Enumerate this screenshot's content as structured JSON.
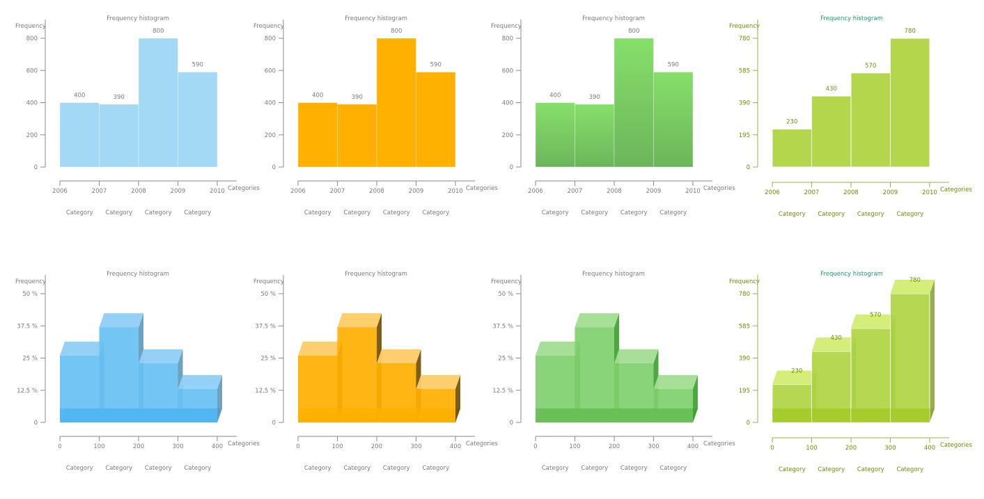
{
  "chart_data": [
    {
      "type": "bar",
      "style": "flat",
      "title": "Frequency histogram",
      "ylabel": "Frequency",
      "xlabel": "Categories",
      "x_ticks": [
        "2006",
        "2007",
        "2008",
        "2009",
        "2010"
      ],
      "category_labels": [
        "Category",
        "Category",
        "Category",
        "Category"
      ],
      "values": [
        400,
        390,
        800,
        590
      ],
      "data_labels": [
        "400",
        "390",
        "800",
        "590"
      ],
      "ylim": [
        0,
        800
      ],
      "y_ticks": [
        "0",
        "200",
        "400",
        "600",
        "800"
      ],
      "grid": false,
      "colors": {
        "bar": "#a3d9f5",
        "text": "#7a7a7a",
        "title": "#7a7a7a",
        "axis": "#8a8a8a"
      }
    },
    {
      "type": "bar",
      "style": "flat",
      "title": "Frequency histogram",
      "ylabel": "Frequency",
      "xlabel": "Categories",
      "x_ticks": [
        "2006",
        "2007",
        "2008",
        "2009",
        "2010"
      ],
      "category_labels": [
        "Category",
        "Category",
        "Category",
        "Category"
      ],
      "values": [
        400,
        390,
        800,
        590
      ],
      "data_labels": [
        "400",
        "390",
        "800",
        "590"
      ],
      "ylim": [
        0,
        800
      ],
      "y_ticks": [
        "0",
        "200",
        "400",
        "600",
        "800"
      ],
      "grid": false,
      "colors": {
        "bar": "#ffb000",
        "text": "#7a7a7a",
        "title": "#7a7a7a",
        "axis": "#8a8a8a"
      }
    },
    {
      "type": "bar",
      "style": "gradient",
      "title": "Frequency histogram",
      "ylabel": "Frequency",
      "xlabel": "Categories",
      "x_ticks": [
        "2006",
        "2007",
        "2008",
        "2009",
        "2010"
      ],
      "category_labels": [
        "Category",
        "Category",
        "Category",
        "Category"
      ],
      "values": [
        400,
        390,
        800,
        590
      ],
      "data_labels": [
        "400",
        "390",
        "800",
        "590"
      ],
      "ylim": [
        0,
        800
      ],
      "y_ticks": [
        "0",
        "200",
        "400",
        "600",
        "800"
      ],
      "grid": false,
      "colors": {
        "bar": "#86df6a",
        "bar_bottom": "#6cb55b",
        "text": "#7a7a7a",
        "title": "#7a7a7a",
        "axis": "#8a8a8a"
      }
    },
    {
      "type": "bar",
      "style": "flat",
      "title": "Frequency histogram",
      "ylabel": "Frequency",
      "xlabel": "Categories",
      "x_ticks": [
        "2006",
        "2007",
        "2008",
        "2009",
        "2010"
      ],
      "category_labels": [
        "Category",
        "Category",
        "Category",
        "Category"
      ],
      "values": [
        230,
        430,
        570,
        780
      ],
      "data_labels": [
        "230",
        "430",
        "570",
        "780"
      ],
      "ylim": [
        0,
        780
      ],
      "y_ticks": [
        "0",
        "195",
        "390",
        "585",
        "780"
      ],
      "grid": false,
      "colors": {
        "bar": "#b3d64d",
        "text": "#6b8e00",
        "title": "#1a9a70",
        "axis": "#9ab04a",
        "separator": "#ffffff"
      }
    },
    {
      "type": "bar",
      "style": "3d",
      "title": "Frequency histogram",
      "ylabel": "Frequency",
      "xlabel": "Categories",
      "x_ticks": [
        "0",
        "100",
        "200",
        "300",
        "400"
      ],
      "category_labels": [
        "Category",
        "Category",
        "Category",
        "Category"
      ],
      "values": [
        26,
        37,
        23,
        13
      ],
      "ylim": [
        0,
        50
      ],
      "y_unit": "%",
      "y_ticks": [
        "0",
        "12.5 %",
        "25 %",
        "37.5 %",
        "50 %"
      ],
      "grid": false,
      "colors": {
        "front": "#67c1f3",
        "top": "#8fcff6",
        "side": "#5f98b8",
        "bottom": "#44b0ef",
        "text": "#7a7a7a",
        "title": "#7a7a7a",
        "axis": "#8a8a8a"
      }
    },
    {
      "type": "bar",
      "style": "3d",
      "title": "Frequency histogram",
      "ylabel": "Frequency",
      "xlabel": "Categories",
      "x_ticks": [
        "0",
        "100",
        "200",
        "300",
        "400"
      ],
      "category_labels": [
        "Category",
        "Category",
        "Category",
        "Category"
      ],
      "values": [
        26,
        37,
        23,
        13
      ],
      "ylim": [
        0,
        50
      ],
      "y_unit": "%",
      "y_ticks": [
        "0",
        "12.5 %",
        "25 %",
        "37.5 %",
        "50 %"
      ],
      "grid": false,
      "colors": {
        "front": "#ffb000",
        "top": "#ffcb66",
        "side": "#6e4c00",
        "bottom": "#ffb000",
        "text": "#7a7a7a",
        "title": "#7a7a7a",
        "axis": "#8a8a8a"
      }
    },
    {
      "type": "bar",
      "style": "3d",
      "title": "Frequency histogram",
      "ylabel": "Frequency",
      "xlabel": "Categories",
      "x_ticks": [
        "0",
        "100",
        "200",
        "300",
        "400"
      ],
      "category_labels": [
        "Category",
        "Category",
        "Category",
        "Category"
      ],
      "values": [
        26,
        37,
        23,
        13
      ],
      "ylim": [
        0,
        50
      ],
      "y_unit": "%",
      "y_ticks": [
        "0",
        "12.5 %",
        "25 %",
        "37.5 %",
        "50 %"
      ],
      "grid": false,
      "colors": {
        "front": "#7fcf6c",
        "top": "#a2dd92",
        "side": "#3a9e2e",
        "bottom": "#5cb748",
        "text": "#7a7a7a",
        "title": "#7a7a7a",
        "axis": "#8a8a8a"
      }
    },
    {
      "type": "bar",
      "style": "3d",
      "title": "Frequency histogram",
      "ylabel": "Frequency",
      "xlabel": "Categories",
      "x_ticks": [
        "0",
        "100",
        "200",
        "300",
        "400"
      ],
      "category_labels": [
        "Category",
        "Category",
        "Category",
        "Category"
      ],
      "values": [
        230,
        430,
        570,
        780
      ],
      "data_labels": [
        "230",
        "430",
        "570",
        "780"
      ],
      "ylim": [
        0,
        780
      ],
      "y_ticks": [
        "0",
        "195",
        "390",
        "585",
        "780"
      ],
      "grid": false,
      "colors": {
        "front": "#b0d444",
        "top": "#d3ec72",
        "side": "#8aa63a",
        "bottom": "#9ec61e",
        "text": "#6b8e00",
        "title": "#1a9a70",
        "axis": "#9ab04a",
        "separator": "#ffffff"
      }
    }
  ]
}
